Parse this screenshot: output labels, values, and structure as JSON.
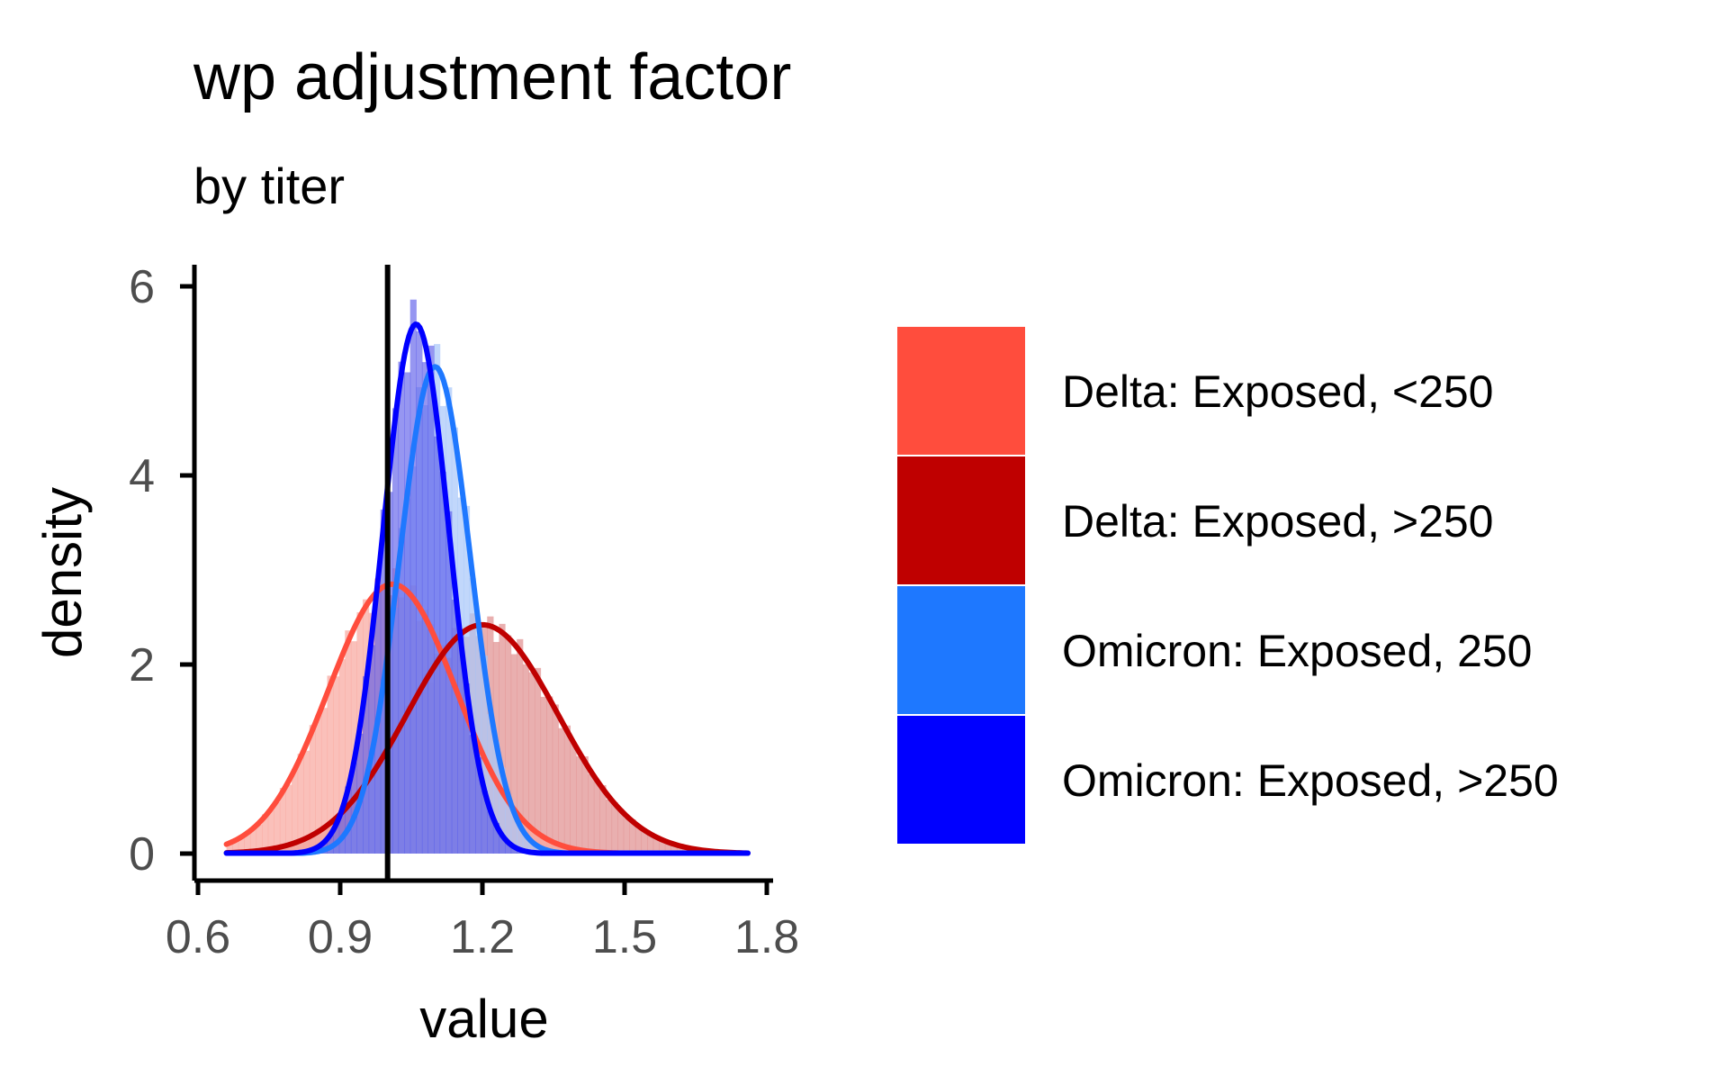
{
  "chart_data": {
    "type": "histogram_density",
    "title": "wp adjustment factor",
    "subtitle": "by titer",
    "xlabel": "value",
    "ylabel": "density",
    "xlim": [
      0.6,
      1.8
    ],
    "ylim": [
      0,
      6
    ],
    "x_ticks": [
      0.6,
      0.9,
      1.2,
      1.5,
      1.8
    ],
    "y_ticks": [
      0,
      2,
      4,
      6
    ],
    "x_tick_labels": [
      "0.6",
      "0.9",
      "1.2",
      "1.5",
      "1.8"
    ],
    "y_tick_labels": [
      "0",
      "2",
      "4",
      "6"
    ],
    "reference_line_x": 1.0,
    "legend_position": "right",
    "series": [
      {
        "name": "Delta: Exposed, <250",
        "color": "#FF4D3D",
        "fill_color": "#F8A8A0",
        "density_peak": {
          "x": 1.01,
          "y": 2.85
        },
        "density_sd": 0.135,
        "x_range": [
          0.66,
          1.76
        ]
      },
      {
        "name": "Delta: Exposed, >250",
        "color": "#BF0000",
        "fill_color": "#E09090",
        "density_peak": {
          "x": 1.2,
          "y": 2.42
        },
        "density_sd": 0.16,
        "x_range": [
          0.66,
          1.76
        ]
      },
      {
        "name": "Omicron: Exposed, 250",
        "color": "#1E78FF",
        "fill_color": "#A9C8FA",
        "density_peak": {
          "x": 1.1,
          "y": 5.15
        },
        "density_sd": 0.075,
        "x_range": [
          0.66,
          1.76
        ]
      },
      {
        "name": "Omicron: Exposed, >250",
        "color": "#0000FF",
        "fill_color": "#5555E8",
        "density_peak": {
          "x": 1.06,
          "y": 5.6
        },
        "density_sd": 0.07,
        "x_range": [
          0.66,
          1.76
        ]
      }
    ]
  }
}
